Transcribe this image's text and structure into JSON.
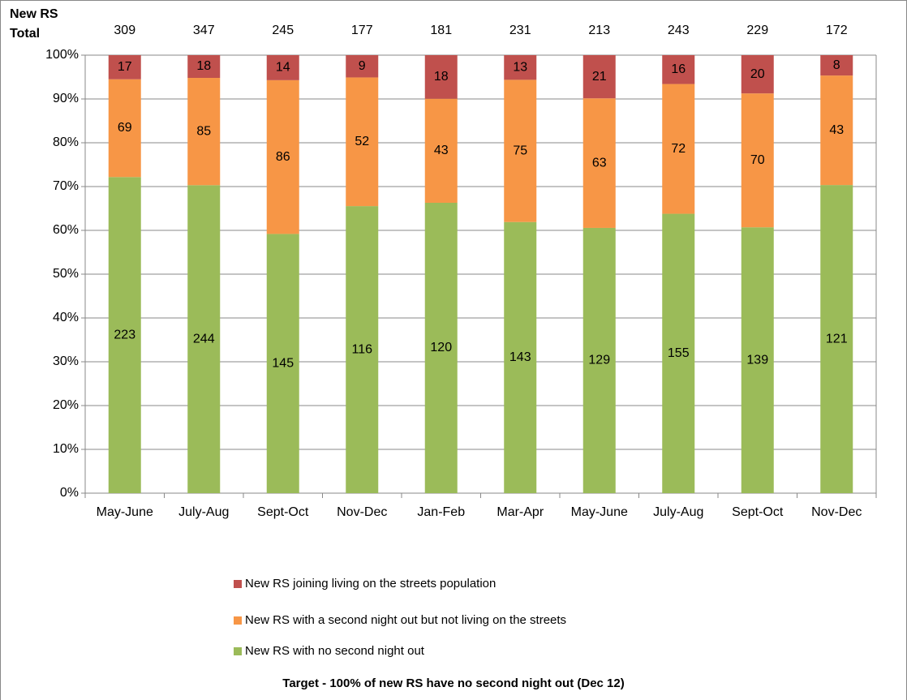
{
  "chart_data": {
    "type": "bar",
    "stacking": "percent",
    "categories": [
      "May-June",
      "July-Aug",
      "Sept-Oct",
      "Nov-Dec",
      "Jan-Feb",
      "Mar-Apr",
      "May-June",
      "July-Aug",
      "Sept-Oct",
      "Nov-Dec"
    ],
    "series": [
      {
        "name": "New RS with no second night out",
        "color": "#9bbb59",
        "values": [
          223,
          244,
          145,
          116,
          120,
          143,
          129,
          155,
          139,
          121
        ]
      },
      {
        "name": "New RS with a second night out but not living on the streets",
        "color": "#f79646",
        "values": [
          69,
          85,
          86,
          52,
          43,
          75,
          63,
          72,
          70,
          43
        ]
      },
      {
        "name": "New RS joining living on the streets population",
        "color": "#c0504d",
        "values": [
          17,
          18,
          14,
          9,
          18,
          13,
          21,
          16,
          20,
          8
        ]
      }
    ],
    "totals_label": [
      "New RS",
      "Total"
    ],
    "totals": [
      309,
      347,
      245,
      177,
      181,
      231,
      213,
      243,
      229,
      172
    ],
    "ylim": [
      0,
      100
    ],
    "yticks": [
      {
        "value": 0,
        "label": "0%"
      },
      {
        "value": 10,
        "label": "10%"
      },
      {
        "value": 20,
        "label": "20%"
      },
      {
        "value": 30,
        "label": "30%"
      },
      {
        "value": 40,
        "label": "40%"
      },
      {
        "value": 50,
        "label": "50%"
      },
      {
        "value": 60,
        "label": "60%"
      },
      {
        "value": 70,
        "label": "70%"
      },
      {
        "value": 80,
        "label": "80%"
      },
      {
        "value": 90,
        "label": "90%"
      },
      {
        "value": 100,
        "label": "100%"
      }
    ],
    "grid": true,
    "legend": "bottom",
    "note": "Target - 100% of new RS have no second night out (Dec 12)"
  }
}
